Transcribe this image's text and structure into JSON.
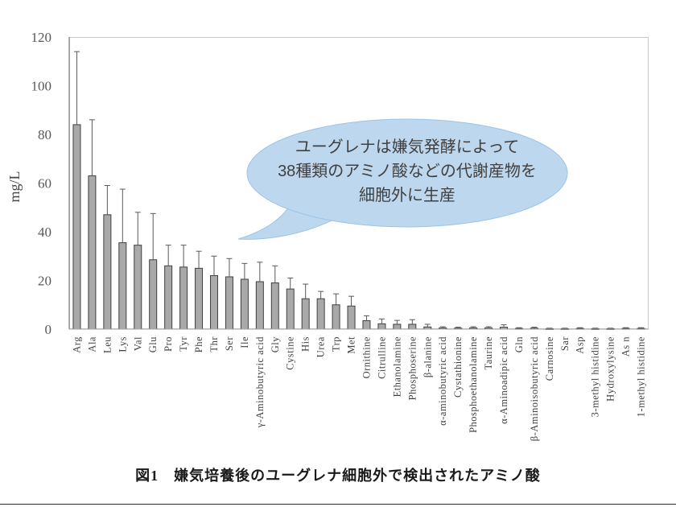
{
  "figure": {
    "caption": "図1　嫌気培養後のユーグレナ細胞外で検出されたアミノ酸"
  },
  "annotation": {
    "lines": [
      "ユーグレナは嫌気発酵によって",
      "38種類のアミノ酸などの代謝産物を",
      "細胞外に生産"
    ],
    "fill": "#BDD7EE",
    "stroke": "#9DC3E6",
    "text_color": "#404040"
  },
  "chart_data": {
    "type": "bar",
    "title": "",
    "xlabel": "",
    "ylabel": "mg/L",
    "ylim": [
      0,
      120
    ],
    "yticks": [
      0,
      20,
      40,
      60,
      80,
      100,
      120
    ],
    "grid": false,
    "legend": "none",
    "bar_color": "#A9A9A9",
    "bar_border": "#3F3F3F",
    "error_color": "#595959",
    "axis_color": "#808080",
    "border_color": "#C9C9C9",
    "tick_label_color": "#595959",
    "category_label_color": "#404040",
    "categories": [
      "Arg",
      "Ala",
      "Leu",
      "Lys",
      "Val",
      "Glu",
      "Pro",
      "Tyr",
      "Phe",
      "Thr",
      "Ser",
      "Ile",
      "γ-Aminobutyric acid",
      "Gly",
      "Cystine",
      "His",
      "Urea",
      "Trp",
      "Met",
      "Ornithine",
      "Citrulline",
      "Ethanolamine",
      "Phosphoserine",
      "β-alanine",
      "α-aminobutyric acid",
      "Cystathionine",
      "Phosphoethanolamine",
      "Taurine",
      "α-Aminoadipic acid",
      "Gln",
      "β-Aminoisobutyric acid",
      "Carnosine",
      "Sar",
      "Asp",
      "3-methyl histidine",
      "Hydroxylysine",
      "As n",
      "1-methyl histidine"
    ],
    "values": [
      84,
      63,
      47,
      35.5,
      34.5,
      28.5,
      26,
      25.5,
      25,
      22,
      21.5,
      20.5,
      19.5,
      19,
      16.5,
      12.5,
      12.5,
      10,
      9.5,
      3.5,
      2.2,
      2,
      2,
      0.9,
      0.5,
      0.4,
      0.5,
      0.5,
      0.8,
      0.3,
      0.4,
      0.2,
      0.2,
      0.3,
      0.2,
      0.2,
      0.3,
      0.3
    ],
    "error_top": [
      114,
      86,
      59,
      57.5,
      48,
      47.5,
      34.5,
      34.5,
      32,
      30,
      29,
      27,
      27.5,
      26,
      21,
      18.5,
      15.5,
      14.5,
      13.5,
      5.5,
      4.2,
      3.6,
      3.9,
      2,
      1,
      0.8,
      1,
      1,
      1.8,
      0.6,
      0.8,
      0.4,
      0.4,
      0.6,
      0.4,
      0.4,
      0.6,
      0.6
    ]
  }
}
